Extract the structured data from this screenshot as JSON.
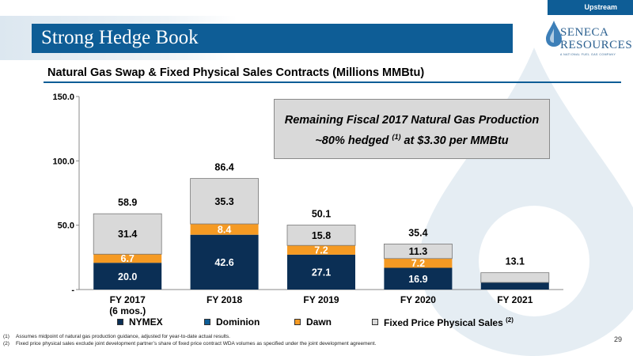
{
  "header": {
    "tag": "Upstream",
    "title": "Strong Hedge Book",
    "logo_name_line1": "SENECA",
    "logo_name_line2": "RESOURCES",
    "logo_sub": "A NATIONAL FUEL GAS COMPANY"
  },
  "chart_subtitle": "Natural Gas Swap & Fixed Physical Sales Contracts (Millions MMBtu)",
  "callout": {
    "line1": "Remaining Fiscal 2017 Natural Gas Production",
    "line2_pre": "~80% hedged",
    "line2_sup": "(1)",
    "line2_post": "at $3.30 per MMBtu"
  },
  "legend": {
    "nymex": "NYMEX",
    "dominion": "Dominion",
    "dawn": "Dawn",
    "fixed": "Fixed Price Physical Sales",
    "fixed_sup": "(2)"
  },
  "footnotes": [
    {
      "num": "(1)",
      "text": "Assumes midpoint of natural gas production guidance, adjusted for year-to-date actual results."
    },
    {
      "num": "(2)",
      "text": "Fixed price physical sales exclude joint development partner’s share of fixed price contract WDA volumes as specified under the joint development agreement."
    }
  ],
  "page_number": "29",
  "colors": {
    "nymex": "#0b2f55",
    "dominion": "#0b2f55",
    "dawn": "#f59a23",
    "fixed": "#d9d9d9",
    "brand_blue": "#0e5d96"
  },
  "chart_data": {
    "type": "bar",
    "stacked": true,
    "categories": [
      "FY 2017\n(6 mos.)",
      "FY 2018",
      "FY 2019",
      "FY 2020",
      "FY 2021"
    ],
    "series": [
      {
        "name": "NYMEX",
        "values": [
          20.0,
          42.6,
          27.1,
          16.9,
          5.5
        ],
        "labels": [
          "20.0",
          "42.6",
          "27.1",
          "16.9",
          ""
        ]
      },
      {
        "name": "Dominion",
        "values": [
          0.8,
          0,
          0,
          0,
          0
        ],
        "labels": [
          "",
          "",
          "",
          "",
          ""
        ]
      },
      {
        "name": "Dawn",
        "values": [
          6.7,
          8.4,
          7.2,
          7.2,
          0
        ],
        "labels": [
          "6.7",
          "8.4",
          "7.2",
          "7.2",
          ""
        ]
      },
      {
        "name": "Fixed Price Physical Sales",
        "values": [
          31.4,
          35.3,
          15.8,
          11.3,
          7.6
        ],
        "labels": [
          "31.4",
          "35.3",
          "15.8",
          "11.3",
          ""
        ]
      }
    ],
    "totals": [
      "58.9",
      "86.4",
      "50.1",
      "35.4",
      "13.1"
    ],
    "ylim": [
      0,
      150
    ],
    "yticks": [
      0,
      50,
      100,
      150
    ],
    "ytick_labels": [
      "-",
      "50.0",
      "100.0",
      "150.0"
    ],
    "xlabel": "",
    "ylabel": ""
  }
}
